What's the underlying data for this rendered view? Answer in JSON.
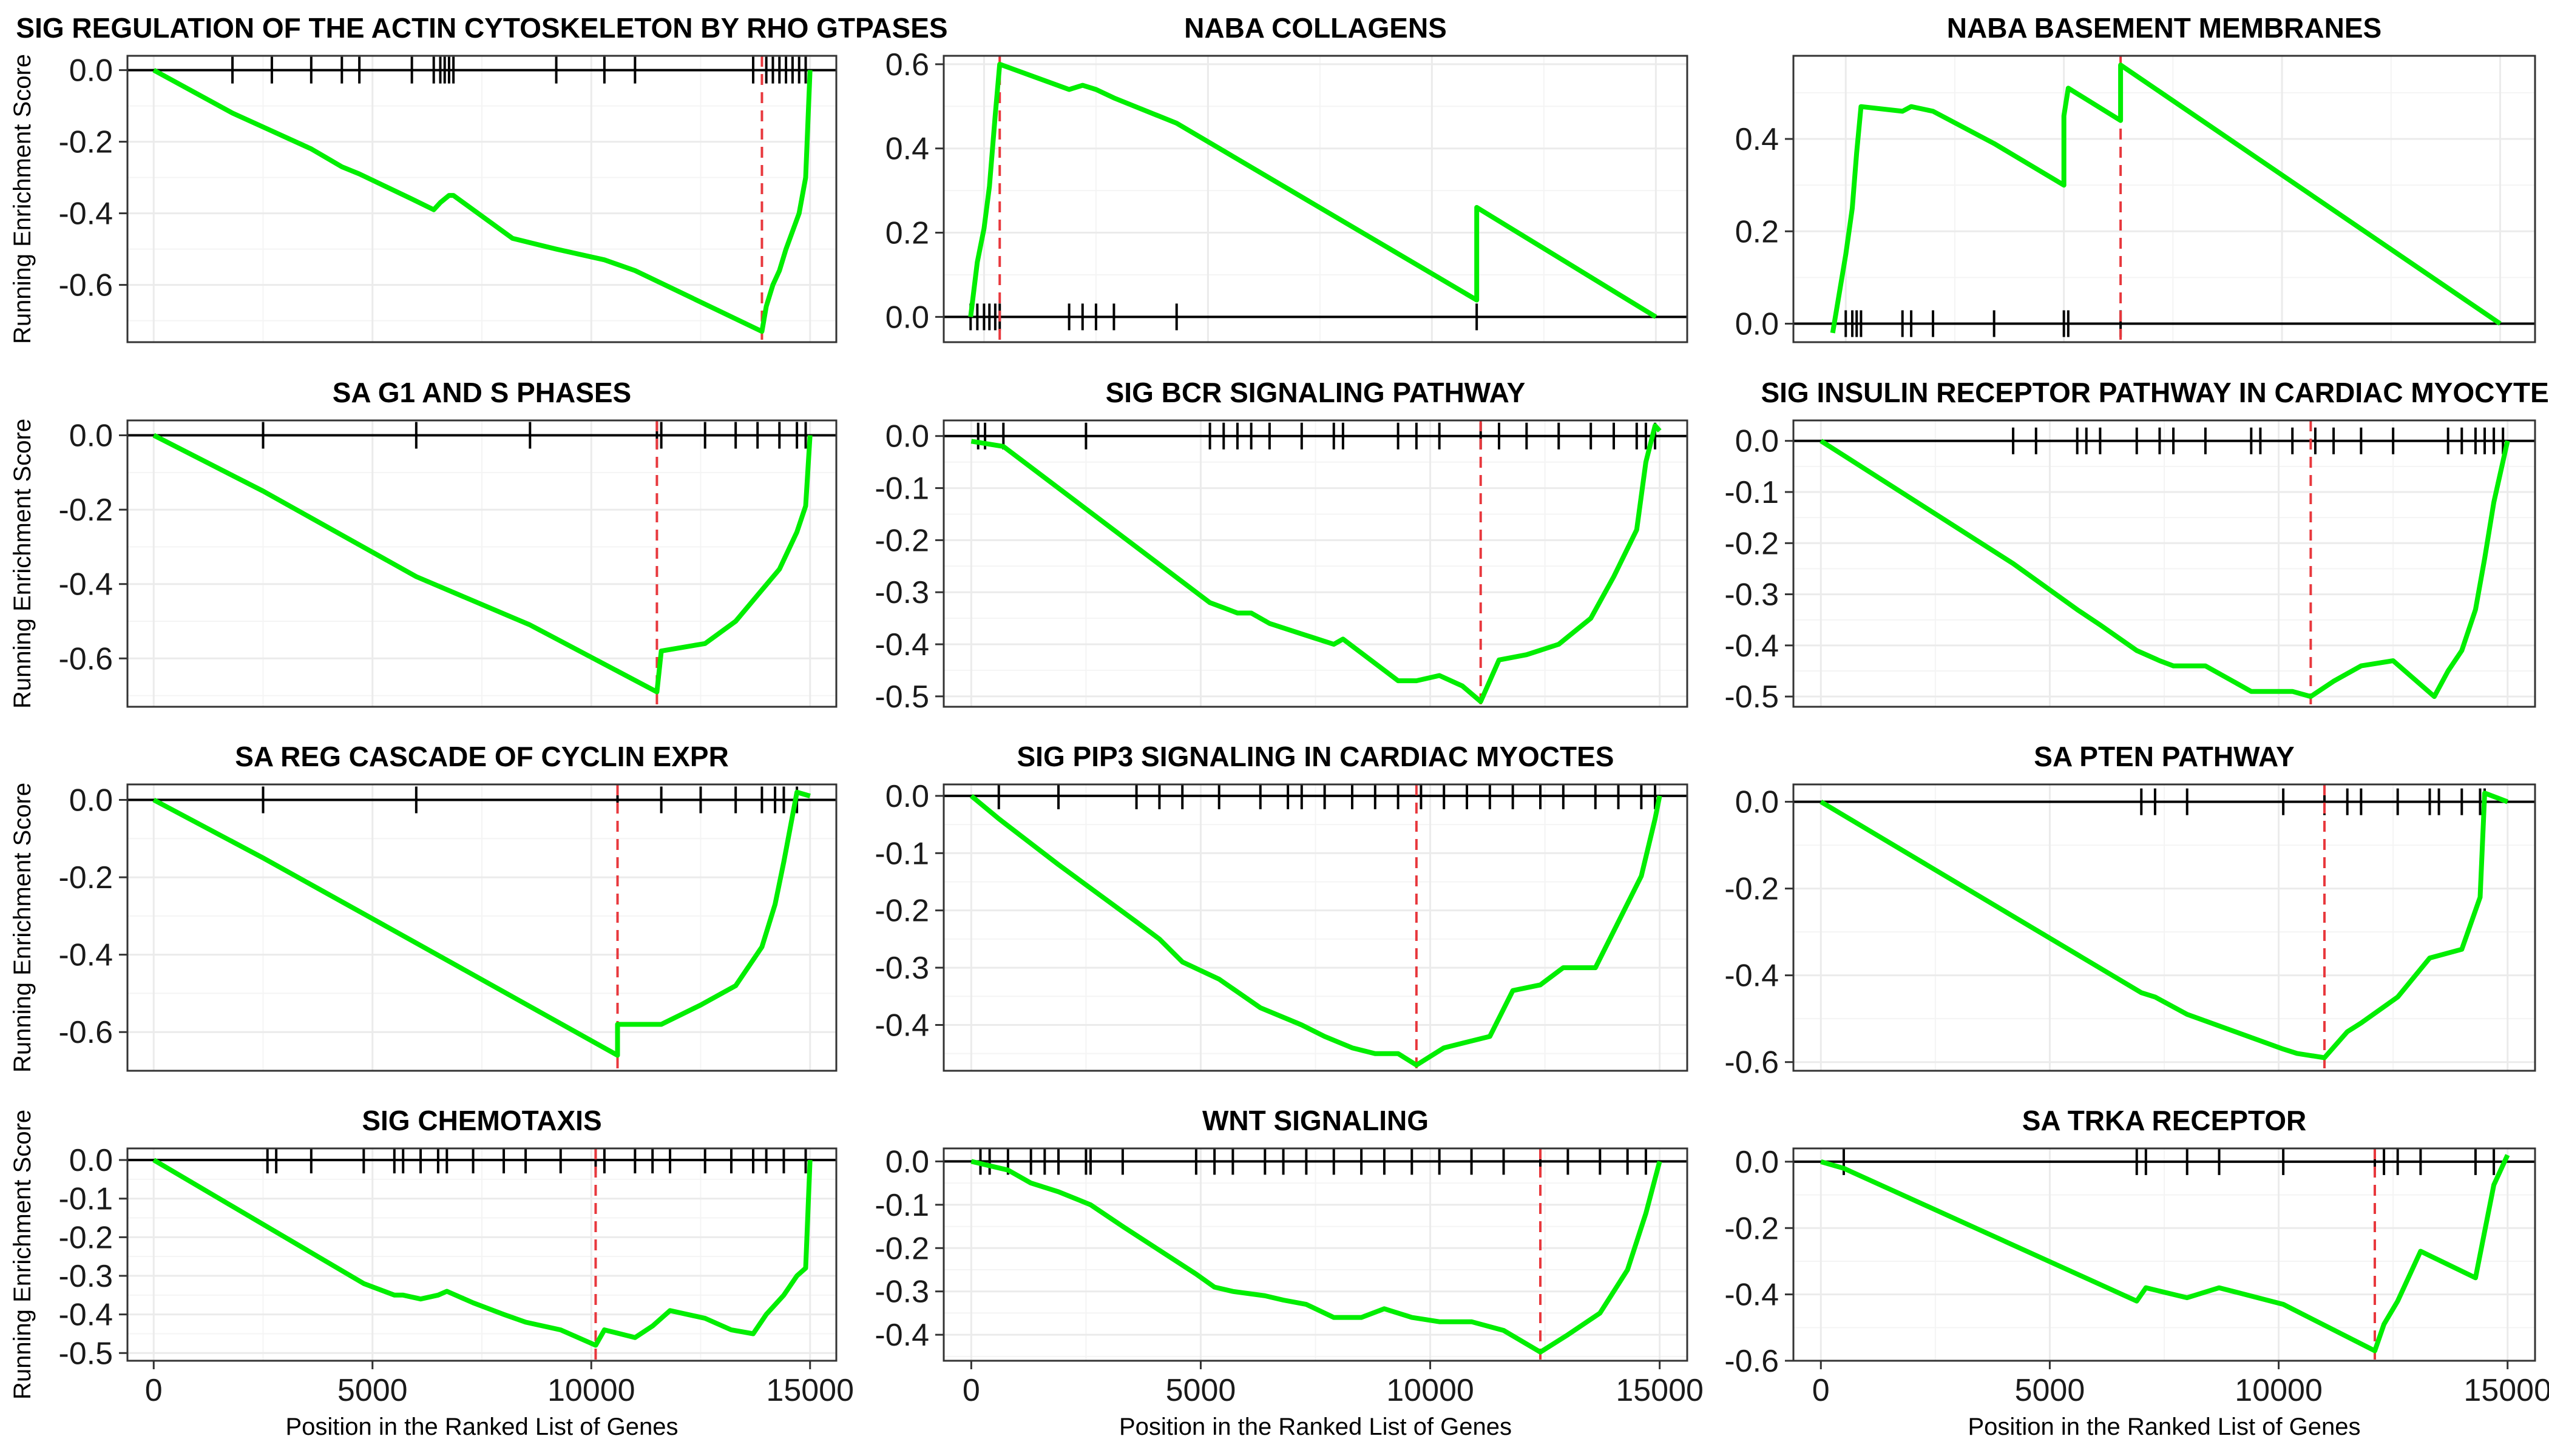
{
  "figure": {
    "ylabel": "Running Enrichment Score",
    "xlabel": "Position in the Ranked List of Genes",
    "x_ticks": [
      "0",
      "5000",
      "10000",
      "15000"
    ],
    "colors": {
      "curve": "#00ee00",
      "peak_line": "#e8383d",
      "hits": "#000000",
      "grid": "#ebebeb",
      "panel_border": "#333333"
    }
  },
  "chart_data": [
    {
      "type": "line",
      "title": "SIG REGULATION OF THE ACTIN CYTOSKELETON BY RHO GTPASES",
      "xlim": [
        -600,
        15600
      ],
      "ylim": [
        -0.76,
        0.04
      ],
      "yticks": [
        0,
        -0.2,
        -0.4,
        -0.6
      ],
      "ytick_labels": [
        "0.0",
        "-0.2",
        "-0.4",
        "-0.6"
      ],
      "peak_x": 13900,
      "hits": [
        1800,
        2700,
        3600,
        4300,
        4700,
        5900,
        6400,
        6550,
        6650,
        6750,
        6850,
        9200,
        10300,
        11000,
        13700,
        14000,
        14150,
        14300,
        14450,
        14600,
        14750,
        14900
      ],
      "x": [
        0,
        1800,
        2700,
        3600,
        4300,
        4700,
        5900,
        6400,
        6550,
        6650,
        6750,
        6850,
        8200,
        9200,
        10300,
        11000,
        13900,
        14000,
        14150,
        14300,
        14450,
        14600,
        14750,
        14900,
        15000
      ],
      "y": [
        0.0,
        -0.12,
        -0.17,
        -0.22,
        -0.27,
        -0.29,
        -0.36,
        -0.39,
        -0.37,
        -0.36,
        -0.35,
        -0.35,
        -0.47,
        -0.5,
        -0.53,
        -0.56,
        -0.73,
        -0.66,
        -0.6,
        -0.56,
        -0.5,
        -0.45,
        -0.4,
        -0.3,
        0.0
      ]
    },
    {
      "type": "line",
      "title": "NABA COLLAGENS",
      "xlim": [
        -900,
        15700
      ],
      "ylim": [
        -0.06,
        0.62
      ],
      "yticks": [
        0,
        0.2,
        0.4,
        0.6
      ],
      "ytick_labels": [
        "0.0",
        "0.2",
        "0.4",
        "0.6"
      ],
      "peak_x": 350,
      "hits": [
        -300,
        -150,
        0,
        120,
        250,
        350,
        1900,
        2200,
        2500,
        2900,
        4300,
        11000
      ],
      "x": [
        -300,
        -150,
        0,
        120,
        250,
        350,
        1900,
        2200,
        2500,
        2900,
        4300,
        11000,
        11000,
        15000
      ],
      "y": [
        0.0,
        0.13,
        0.21,
        0.31,
        0.48,
        0.6,
        0.54,
        0.55,
        0.54,
        0.52,
        0.46,
        0.04,
        0.26,
        0.0
      ]
    },
    {
      "type": "line",
      "title": "NABA BASEMENT MEMBRANES",
      "xlim": [
        -1200,
        15800
      ],
      "ylim": [
        -0.04,
        0.58
      ],
      "yticks": [
        0,
        0.2,
        0.4
      ],
      "ytick_labels": [
        "0.0",
        "0.2",
        "0.4"
      ],
      "peak_x": 6300,
      "hits": [
        0,
        150,
        250,
        350,
        1300,
        1500,
        2000,
        3400,
        5000,
        5100,
        6300
      ],
      "x": [
        -300,
        -300,
        0,
        150,
        250,
        350,
        1300,
        1500,
        2000,
        3400,
        5000,
        5000,
        5100,
        6300,
        6300,
        15000
      ],
      "y": [
        -0.02,
        -0.02,
        0.15,
        0.25,
        0.37,
        0.47,
        0.46,
        0.47,
        0.46,
        0.39,
        0.3,
        0.45,
        0.51,
        0.44,
        0.56,
        0.0
      ]
    },
    {
      "type": "line",
      "title": "SA G1 AND S PHASES",
      "xlim": [
        -600,
        15600
      ],
      "ylim": [
        -0.73,
        0.04
      ],
      "yticks": [
        0,
        -0.2,
        -0.4,
        -0.6
      ],
      "ytick_labels": [
        "0.0",
        "-0.2",
        "-0.4",
        "-0.6"
      ],
      "peak_x": 11500,
      "hits": [
        2500,
        6000,
        8600,
        11500,
        11600,
        12600,
        13300,
        13800,
        14300,
        14700,
        14900
      ],
      "x": [
        0,
        2500,
        6000,
        8600,
        11500,
        11600,
        12600,
        13300,
        13800,
        14300,
        14700,
        14900,
        15000
      ],
      "y": [
        0.0,
        -0.15,
        -0.38,
        -0.51,
        -0.69,
        -0.58,
        -0.56,
        -0.5,
        -0.43,
        -0.36,
        -0.26,
        -0.19,
        0.0
      ]
    },
    {
      "type": "line",
      "title": "SIG BCR SIGNALING PATHWAY",
      "xlim": [
        -600,
        15600
      ],
      "ylim": [
        -0.52,
        0.03
      ],
      "yticks": [
        0,
        -0.1,
        -0.2,
        -0.3,
        -0.4,
        -0.5
      ],
      "ytick_labels": [
        "0.0",
        "-0.1",
        "-0.2",
        "-0.3",
        "-0.4",
        "-0.5"
      ],
      "peak_x": 11100,
      "hits": [
        150,
        300,
        700,
        2500,
        5200,
        5500,
        5800,
        6100,
        6500,
        7200,
        7900,
        8100,
        9300,
        9700,
        10200,
        11100,
        11500,
        12100,
        12800,
        13500,
        14000,
        14500,
        14700,
        14900
      ],
      "x": [
        0,
        700,
        2500,
        4000,
        5200,
        5500,
        5800,
        6100,
        6500,
        7200,
        7900,
        8100,
        9300,
        9700,
        10200,
        10700,
        11100,
        11500,
        12100,
        12800,
        13500,
        14000,
        14500,
        14700,
        14900,
        15000
      ],
      "y": [
        -0.01,
        -0.02,
        -0.14,
        -0.24,
        -0.32,
        -0.33,
        -0.34,
        -0.34,
        -0.36,
        -0.38,
        -0.4,
        -0.39,
        -0.47,
        -0.47,
        -0.46,
        -0.48,
        -0.51,
        -0.43,
        -0.42,
        -0.4,
        -0.35,
        -0.27,
        -0.18,
        -0.05,
        0.02,
        0.01
      ]
    },
    {
      "type": "line",
      "title": "SIG INSULIN RECEPTOR PATHWAY IN CARDIAC MYOCYTES",
      "xlim": [
        -600,
        15600
      ],
      "ylim": [
        -0.52,
        0.04
      ],
      "yticks": [
        0,
        -0.1,
        -0.2,
        -0.3,
        -0.4,
        -0.5
      ],
      "ytick_labels": [
        "0.0",
        "-0.1",
        "-0.2",
        "-0.3",
        "-0.4",
        "-0.5"
      ],
      "peak_x": 10700,
      "hits": [
        4200,
        4700,
        5600,
        5800,
        6100,
        6900,
        7400,
        7700,
        8400,
        9400,
        9600,
        10300,
        10800,
        11200,
        11800,
        12500,
        13700,
        14000,
        14300,
        14500,
        14700,
        14900
      ],
      "x": [
        0,
        4200,
        5600,
        6100,
        6900,
        7400,
        7700,
        8400,
        9400,
        10300,
        10700,
        11200,
        11800,
        12500,
        13400,
        13700,
        14000,
        14300,
        14500,
        14700,
        14900,
        15000
      ],
      "y": [
        0.0,
        -0.24,
        -0.33,
        -0.36,
        -0.41,
        -0.43,
        -0.44,
        -0.44,
        -0.49,
        -0.49,
        -0.5,
        -0.47,
        -0.44,
        -0.43,
        -0.5,
        -0.45,
        -0.41,
        -0.33,
        -0.23,
        -0.12,
        -0.04,
        0.0
      ]
    },
    {
      "type": "line",
      "title": "SA REG CASCADE OF CYCLIN EXPR",
      "xlim": [
        -600,
        15600
      ],
      "ylim": [
        -0.7,
        0.04
      ],
      "yticks": [
        0,
        -0.2,
        -0.4,
        -0.6
      ],
      "ytick_labels": [
        "0.0",
        "-0.2",
        "-0.4",
        "-0.6"
      ],
      "peak_x": 10600,
      "hits": [
        2500,
        6000,
        10600,
        11600,
        12500,
        13300,
        13900,
        14200,
        14400,
        14700
      ],
      "x": [
        0,
        2500,
        6000,
        10600,
        10600,
        11600,
        12500,
        13300,
        13900,
        14200,
        14400,
        14700,
        15000
      ],
      "y": [
        0.0,
        -0.15,
        -0.37,
        -0.66,
        -0.58,
        -0.58,
        -0.53,
        -0.48,
        -0.38,
        -0.27,
        -0.16,
        0.02,
        0.01
      ]
    },
    {
      "type": "line",
      "title": "SIG PIP3 SIGNALING IN CARDIAC MYOCTES",
      "xlim": [
        -600,
        15600
      ],
      "ylim": [
        -0.48,
        0.02
      ],
      "yticks": [
        0,
        -0.1,
        -0.2,
        -0.3,
        -0.4
      ],
      "ytick_labels": [
        "0.0",
        "-0.1",
        "-0.2",
        "-0.3",
        "-0.4"
      ],
      "peak_x": 9700,
      "hits": [
        600,
        1900,
        3600,
        4100,
        4600,
        5400,
        6300,
        6900,
        7200,
        7700,
        8300,
        8800,
        9300,
        9800,
        10300,
        10800,
        11300,
        11800,
        12400,
        12900,
        13600,
        14100,
        14600,
        14900
      ],
      "x": [
        0,
        600,
        1900,
        3600,
        4100,
        4600,
        5400,
        6300,
        6900,
        7200,
        7700,
        8300,
        8800,
        9300,
        9700,
        10300,
        10800,
        11300,
        11800,
        12400,
        12900,
        13600,
        14100,
        14600,
        14900,
        15000
      ],
      "y": [
        0.0,
        -0.04,
        -0.12,
        -0.22,
        -0.25,
        -0.29,
        -0.32,
        -0.37,
        -0.39,
        -0.4,
        -0.42,
        -0.44,
        -0.45,
        -0.45,
        -0.47,
        -0.44,
        -0.43,
        -0.42,
        -0.34,
        -0.33,
        -0.3,
        -0.3,
        -0.22,
        -0.14,
        -0.04,
        0.0
      ]
    },
    {
      "type": "line",
      "title": "SA PTEN PATHWAY",
      "xlim": [
        -600,
        15600
      ],
      "ylim": [
        -0.62,
        0.04
      ],
      "yticks": [
        0,
        -0.2,
        -0.4,
        -0.6
      ],
      "ytick_labels": [
        "0.0",
        "-0.2",
        "-0.4",
        "-0.6"
      ],
      "peak_x": 11000,
      "hits": [
        7000,
        7300,
        8000,
        10100,
        11000,
        11500,
        11800,
        12600,
        13300,
        13500,
        14000,
        14400,
        14500
      ],
      "x": [
        0,
        7000,
        7300,
        8000,
        10100,
        10400,
        11000,
        11500,
        11800,
        12600,
        13300,
        14000,
        14400,
        14500,
        15000
      ],
      "y": [
        0.0,
        -0.44,
        -0.45,
        -0.49,
        -0.57,
        -0.58,
        -0.59,
        -0.53,
        -0.51,
        -0.45,
        -0.36,
        -0.34,
        -0.22,
        0.02,
        0.0
      ]
    },
    {
      "type": "line",
      "title": "SIG CHEMOTAXIS",
      "xlim": [
        -600,
        15600
      ],
      "ylim": [
        -0.52,
        0.03
      ],
      "yticks": [
        0,
        -0.1,
        -0.2,
        -0.3,
        -0.4,
        -0.5
      ],
      "ytick_labels": [
        "0.0",
        "-0.1",
        "-0.2",
        "-0.3",
        "-0.4",
        "-0.5"
      ],
      "peak_x": 10100,
      "hits": [
        2600,
        2800,
        3600,
        4800,
        5500,
        5700,
        6100,
        6500,
        6700,
        7300,
        8000,
        8500,
        9300,
        10100,
        10300,
        11000,
        11400,
        11800,
        12600,
        13200,
        13700,
        14000,
        14400,
        14900
      ],
      "x": [
        0,
        4800,
        5500,
        5700,
        6100,
        6500,
        6700,
        7300,
        8000,
        8500,
        9300,
        10100,
        10300,
        11000,
        11400,
        11800,
        12600,
        13200,
        13700,
        14000,
        14400,
        14700,
        14900,
        15000
      ],
      "y": [
        0.0,
        -0.32,
        -0.35,
        -0.35,
        -0.36,
        -0.35,
        -0.34,
        -0.37,
        -0.4,
        -0.42,
        -0.44,
        -0.48,
        -0.44,
        -0.46,
        -0.43,
        -0.39,
        -0.41,
        -0.44,
        -0.45,
        -0.4,
        -0.35,
        -0.3,
        -0.28,
        0.0
      ]
    },
    {
      "type": "line",
      "title": "WNT SIGNALING",
      "xlim": [
        -600,
        15600
      ],
      "ylim": [
        -0.46,
        0.03
      ],
      "yticks": [
        0,
        -0.1,
        -0.2,
        -0.3,
        -0.4
      ],
      "ytick_labels": [
        "0.0",
        "-0.1",
        "-0.2",
        "-0.3",
        "-0.4"
      ],
      "peak_x": 12400,
      "hits": [
        200,
        400,
        800,
        1300,
        1600,
        1900,
        2500,
        2600,
        3300,
        4900,
        5300,
        5700,
        6400,
        6800,
        7300,
        7900,
        8500,
        9000,
        9600,
        10200,
        10900,
        11600,
        12400,
        13000,
        13700,
        14300,
        14700
      ],
      "x": [
        0,
        800,
        1300,
        1900,
        2600,
        3300,
        4900,
        5300,
        5700,
        6400,
        6800,
        7300,
        7900,
        8500,
        9000,
        9600,
        10200,
        10900,
        11600,
        12400,
        13000,
        13700,
        14300,
        14700,
        15000
      ],
      "y": [
        0.0,
        -0.02,
        -0.05,
        -0.07,
        -0.1,
        -0.15,
        -0.26,
        -0.29,
        -0.3,
        -0.31,
        -0.32,
        -0.33,
        -0.36,
        -0.36,
        -0.34,
        -0.36,
        -0.37,
        -0.37,
        -0.39,
        -0.44,
        -0.4,
        -0.35,
        -0.25,
        -0.12,
        0.0
      ]
    },
    {
      "type": "line",
      "title": "SA TRKA RECEPTOR",
      "xlim": [
        -600,
        15600
      ],
      "ylim": [
        -0.6,
        0.04
      ],
      "yticks": [
        0,
        -0.2,
        -0.4,
        -0.6
      ],
      "ytick_labels": [
        "0.0",
        "-0.2",
        "-0.4",
        "-0.6"
      ],
      "peak_x": 12100,
      "hits": [
        500,
        6900,
        7100,
        8000,
        8700,
        10100,
        12100,
        12300,
        12600,
        13100,
        14300,
        14700
      ],
      "x": [
        0,
        500,
        6900,
        7100,
        8000,
        8700,
        10100,
        12100,
        12300,
        12600,
        13100,
        14300,
        14700,
        15000
      ],
      "y": [
        0.0,
        -0.02,
        -0.42,
        -0.38,
        -0.41,
        -0.38,
        -0.43,
        -0.57,
        -0.49,
        -0.42,
        -0.27,
        -0.35,
        -0.07,
        0.02
      ]
    }
  ]
}
